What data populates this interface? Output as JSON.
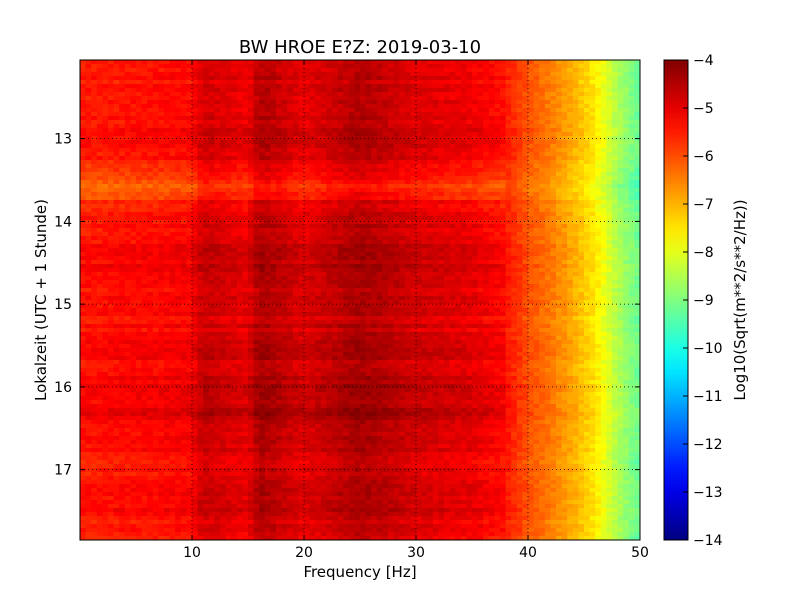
{
  "chart_data": {
    "type": "heatmap",
    "title": "BW HROE E?Z: 2019-03-10",
    "xlabel": "Frequency [Hz]",
    "ylabel": "Lokalzeit (UTC + 1 Stunde)",
    "xlim": [
      0,
      50
    ],
    "ylim": [
      12.05,
      17.85
    ],
    "y_inverted": true,
    "x_ticks": [
      10,
      20,
      30,
      40,
      50
    ],
    "x_tick_labels": [
      "10",
      "20",
      "30",
      "40",
      "50"
    ],
    "y_ticks": [
      13,
      14,
      15,
      16,
      17
    ],
    "y_tick_labels": [
      "13",
      "14",
      "15",
      "16",
      "17"
    ],
    "grid": true,
    "colorbar": {
      "label": "Log10(Sqrt(m**2/s**2/Hz))",
      "range": [
        -14,
        -4
      ],
      "ticks": [
        -4,
        -5,
        -6,
        -7,
        -8,
        -9,
        -10,
        -11,
        -12,
        -13,
        -14
      ],
      "tick_labels": [
        "−4",
        "−5",
        "−6",
        "−7",
        "−8",
        "−9",
        "−10",
        "−11",
        "−12",
        "−13",
        "−14"
      ],
      "colormap": "jet"
    },
    "spectral_profile": {
      "frequency_hz": [
        0,
        5,
        10,
        11,
        15,
        16,
        20,
        25,
        30,
        35,
        38,
        40,
        42,
        44,
        46,
        48,
        50
      ],
      "log10_amplitude": [
        -5.6,
        -5.5,
        -5.4,
        -4.9,
        -5.2,
        -4.6,
        -5.1,
        -4.6,
        -5.0,
        -5.2,
        -5.5,
        -6.1,
        -6.5,
        -7.0,
        -7.6,
        -8.6,
        -9.3
      ]
    },
    "time_variation": {
      "time_h": [
        12.1,
        12.5,
        13.0,
        13.4,
        13.55,
        13.65,
        13.8,
        14.2,
        14.6,
        15.0,
        15.4,
        15.8,
        16.1,
        16.4,
        16.9,
        17.4,
        17.8
      ],
      "offset_log10": [
        0.0,
        0.1,
        0.2,
        -0.2,
        -0.8,
        -0.7,
        0.0,
        0.2,
        0.3,
        0.1,
        0.2,
        0.2,
        0.4,
        0.4,
        0.1,
        0.3,
        -0.1
      ]
    }
  }
}
